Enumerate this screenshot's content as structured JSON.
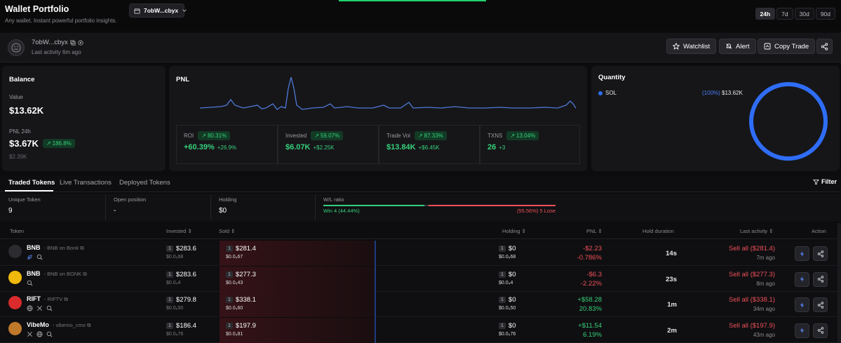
{
  "header": {
    "title": "Wallet Portfolio",
    "subtitle": "Any wallet. Instant powerful portfolio insights.",
    "wallet_selector": "7obW...cbyx",
    "timeframes": [
      "24h",
      "7d",
      "30d",
      "90d"
    ],
    "active_timeframe": "24h"
  },
  "wallet": {
    "address": "7obW...cbyx",
    "last_activity": "Last activity 6m ago",
    "buttons": {
      "watchlist": "Watchlist",
      "alert": "Alert",
      "copy_trade": "Copy Trade"
    }
  },
  "balance": {
    "title": "Balance",
    "value_label": "Value",
    "value": "$13.62K",
    "pnl_label": "PNL 24h",
    "pnl": "$3.67K",
    "pnl_badge": "186.8%",
    "pnl_sub": "$2.39K"
  },
  "pnl": {
    "title": "PNL",
    "stats": [
      {
        "label": "ROI",
        "badge": "80.31%",
        "value": "+60.39%",
        "sub": "+26.9%"
      },
      {
        "label": "Invested",
        "badge": "59.07%",
        "value": "$6.07K",
        "sub": "+$2.25K"
      },
      {
        "label": "Trade Vol",
        "badge": "87.33%",
        "value": "$13.84K",
        "sub": "+$6.45K"
      },
      {
        "label": "TXNS",
        "badge": "13.04%",
        "value": "26",
        "sub": "+3"
      }
    ]
  },
  "quantity": {
    "title": "Quantity",
    "items": [
      {
        "symbol": "SOL",
        "percent": "(100%)",
        "value": "$13.62K",
        "color": "#2f6df6"
      }
    ]
  },
  "tabs": {
    "items": [
      "Traded Tokens",
      "Live Transactions",
      "Deployed Tokens"
    ],
    "active": "Traded Tokens",
    "filter": "Filter"
  },
  "stats": {
    "unique_label": "Unique Token",
    "unique": "9",
    "open_label": "Open position",
    "open": "-",
    "holding_label": "Holding",
    "holding": "$0",
    "wl_label": "W/L ratio",
    "win": "Win 4 (44.44%)",
    "lose": "(55.56%) 5 Lose",
    "win_fraction": 0.4444
  },
  "table": {
    "headers": {
      "token": "Token",
      "invested": "Invested",
      "sold": "Sold",
      "holding": "Holding",
      "pnl": "PNL",
      "hold_duration": "Hold duration",
      "last_activity": "Last activity",
      "action": "Action"
    },
    "rows": [
      {
        "name": "BNB",
        "sub": "BNB on Bonk",
        "icon_color": "#2b2b30",
        "inv_count": "1",
        "invested": "$283.6",
        "inv_sub": "$0.0₅68",
        "sold_count": "1",
        "sold": "$281.4",
        "sold_sub": "$0.0₅67",
        "hold_count": "1",
        "holding": "$0",
        "hold_sub": "$0.0₅68",
        "pnl": "-$2.23",
        "pnl_pct": "-0.786%",
        "pnl_class": "r",
        "duration": "14s",
        "sell": "Sell all ($281.4)",
        "ago": "7m ago",
        "icons": [
          "leaf",
          "search"
        ]
      },
      {
        "name": "BNB",
        "sub": "BNB on BONK",
        "icon_color": "#f0b90b",
        "inv_count": "1",
        "invested": "$283.6",
        "inv_sub": "$0.0₄4",
        "sold_count": "1",
        "sold": "$277.3",
        "sold_sub": "$0.0₅43",
        "hold_count": "1",
        "holding": "$0",
        "hold_sub": "$0.0₄4",
        "pnl": "-$6.3",
        "pnl_pct": "-2.22%",
        "pnl_class": "r",
        "duration": "23s",
        "sell": "Sell all ($277.3)",
        "ago": "8m ago",
        "icons": [
          "search"
        ]
      },
      {
        "name": "RIFT",
        "sub": "RIFTV",
        "icon_color": "#d92b2b",
        "inv_count": "1",
        "invested": "$279.8",
        "inv_sub": "$0.0₅50",
        "sold_count": "1",
        "sold": "$338.1",
        "sold_sub": "$0.0₅60",
        "hold_count": "1",
        "holding": "$0",
        "hold_sub": "$0.0₅50",
        "pnl": "+$58.28",
        "pnl_pct": "20.83%",
        "pnl_class": "g",
        "duration": "1m",
        "sell": "Sell all ($338.1)",
        "ago": "34m ago",
        "icons": [
          "globe",
          "x",
          "search"
        ]
      },
      {
        "name": "VibeMo",
        "sub": "vibemo_cmo",
        "icon_color": "#c0782a",
        "inv_count": "1",
        "invested": "$186.4",
        "inv_sub": "$0.0₅76",
        "sold_count": "1",
        "sold": "$197.9",
        "sold_sub": "$0.0₅81",
        "hold_count": "1",
        "holding": "$0",
        "hold_sub": "$0.0₅76",
        "pnl": "+$11.54",
        "pnl_pct": "6.19%",
        "pnl_class": "g",
        "duration": "2m",
        "sell": "Sell all ($197.9)",
        "ago": "43m ago",
        "icons": [
          "x",
          "globe",
          "search"
        ]
      }
    ]
  }
}
